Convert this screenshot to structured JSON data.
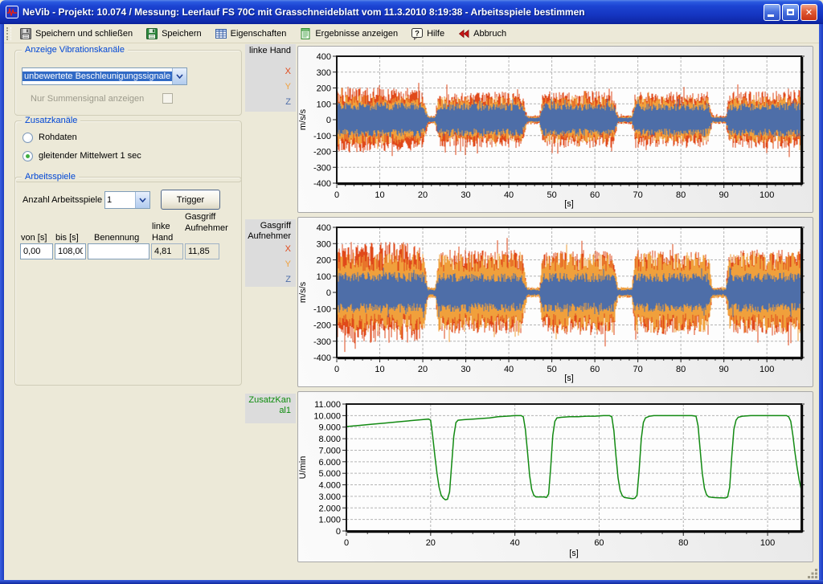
{
  "window": {
    "title": "NeVib  - Projekt: 10.074 / Messung: Leerlauf FS 70C mit Grasschneideblatt vom 11.3.2010 8:19:38 - Arbeitsspiele bestimmen"
  },
  "toolbar": {
    "items": [
      {
        "label": "Speichern und schließen",
        "icon": "save-close-icon"
      },
      {
        "label": "Speichern",
        "icon": "save-icon"
      },
      {
        "label": "Eigenschaften",
        "icon": "properties-icon"
      },
      {
        "label": "Ergebnisse anzeigen",
        "icon": "results-icon"
      },
      {
        "label": "Hilfe",
        "icon": "help-icon"
      },
      {
        "label": "Abbruch",
        "icon": "abort-icon"
      }
    ]
  },
  "sidebar": {
    "anzeige": {
      "title": "Anzeige Vibrationskanäle",
      "combo_value": "unbewertete Beschleunigungssignale",
      "summensignal_label": "Nur Summensignal anzeigen"
    },
    "zusatz": {
      "title": "Zusatzkanäle",
      "options": [
        {
          "label": "Rohdaten",
          "selected": false
        },
        {
          "label": "gleitender Mittelwert 1 sec",
          "selected": true
        }
      ]
    },
    "arbeitsspiele": {
      "title": "Arbeitsspiele",
      "anzahl_label": "Anzahl Arbeitsspiele",
      "anzahl_value": "1",
      "trigger_label": "Trigger",
      "table": {
        "headers": {
          "von": "von [s]",
          "bis": "bis [s]",
          "benennung": "Benennung",
          "linke1": "linke",
          "linke2": "Hand",
          "gasgriff1": "Gasgriff",
          "gasgriff2": "Aufnehmer"
        },
        "row": {
          "von": "0,00",
          "bis": "108,00",
          "benennung": "",
          "linke_hand": "4,81",
          "gasgriff": "11,85"
        }
      }
    }
  },
  "chart_data": [
    {
      "type": "noise-envelope",
      "seed": 11,
      "title": "linke Hand",
      "channel_labels": [
        {
          "label": "X",
          "color": "#e0491a"
        },
        {
          "label": "Y",
          "color": "#f0a03c"
        },
        {
          "label": "Z",
          "color": "#4e6ea8"
        }
      ],
      "ylabel": "m/s/s",
      "xlabel": "[s]",
      "xlim": [
        0,
        108
      ],
      "ylim": [
        -400,
        400
      ],
      "yticks": [
        400,
        300,
        200,
        100,
        0,
        -100,
        -200,
        -300,
        -400
      ],
      "xticks": [
        0,
        10,
        20,
        30,
        40,
        50,
        60,
        70,
        80,
        90,
        100
      ],
      "xminor": 2,
      "series": [
        {
          "name": "X",
          "color": "#e0491a",
          "envelope": [
            [
              0,
              185
            ],
            [
              1.5,
              200
            ],
            [
              19.5,
              190
            ],
            [
              20.5,
              120
            ],
            [
              21.3,
              28
            ],
            [
              22.8,
              28
            ],
            [
              23.7,
              165
            ],
            [
              43,
              170
            ],
            [
              44.3,
              28
            ],
            [
              47.1,
              28
            ],
            [
              47.9,
              170
            ],
            [
              64.3,
              175
            ],
            [
              65.4,
              28
            ],
            [
              68.6,
              28
            ],
            [
              69.4,
              170
            ],
            [
              86.2,
              170
            ],
            [
              87.3,
              28
            ],
            [
              90.4,
              28
            ],
            [
              91.3,
              170
            ],
            [
              108,
              180
            ]
          ]
        },
        {
          "name": "Y",
          "color": "#f0a03c",
          "envelope": [
            [
              0,
              150
            ],
            [
              19.5,
              150
            ],
            [
              20.5,
              100
            ],
            [
              21.3,
              22
            ],
            [
              22.8,
              22
            ],
            [
              23.7,
              135
            ],
            [
              43,
              140
            ],
            [
              44.3,
              22
            ],
            [
              47.1,
              22
            ],
            [
              47.9,
              140
            ],
            [
              64.3,
              140
            ],
            [
              65.4,
              22
            ],
            [
              68.6,
              22
            ],
            [
              69.4,
              140
            ],
            [
              86.2,
              140
            ],
            [
              87.3,
              22
            ],
            [
              90.4,
              22
            ],
            [
              91.3,
              140
            ],
            [
              108,
              145
            ]
          ]
        },
        {
          "name": "Z",
          "color": "#4e6ea8",
          "envelope": [
            [
              0,
              108
            ],
            [
              19.5,
              105
            ],
            [
              20.5,
              70
            ],
            [
              21.3,
              16
            ],
            [
              22.8,
              16
            ],
            [
              23.7,
              100
            ],
            [
              43,
              100
            ],
            [
              44.3,
              15
            ],
            [
              47.1,
              15
            ],
            [
              47.9,
              100
            ],
            [
              64.3,
              100
            ],
            [
              65.4,
              16
            ],
            [
              68.6,
              16
            ],
            [
              69.4,
              100
            ],
            [
              86.2,
              100
            ],
            [
              87.3,
              16
            ],
            [
              90.4,
              16
            ],
            [
              91.3,
              100
            ],
            [
              108,
              105
            ]
          ]
        }
      ]
    },
    {
      "type": "noise-envelope",
      "seed": 22,
      "title": "Gasgriff Aufnehmer",
      "channel_labels": [
        {
          "label": "X",
          "color": "#e0491a"
        },
        {
          "label": "Y",
          "color": "#f0a03c"
        },
        {
          "label": "Z",
          "color": "#4e6ea8"
        }
      ],
      "ylabel": "m/s/s",
      "xlabel": "[s]",
      "xlim": [
        0,
        108
      ],
      "ylim": [
        -400,
        400
      ],
      "yticks": [
        400,
        300,
        200,
        100,
        0,
        -100,
        -200,
        -300,
        -400
      ],
      "xticks": [
        0,
        10,
        20,
        30,
        40,
        50,
        60,
        70,
        80,
        90,
        100
      ],
      "xminor": 2,
      "series": [
        {
          "name": "X",
          "color": "#e0491a",
          "envelope": [
            [
              0,
              300
            ],
            [
              19,
              295
            ],
            [
              20.3,
              200
            ],
            [
              21.2,
              30
            ],
            [
              22.9,
              30
            ],
            [
              23.7,
              250
            ],
            [
              43,
              250
            ],
            [
              44.3,
              28
            ],
            [
              47.1,
              28
            ],
            [
              47.9,
              250
            ],
            [
              64.3,
              250
            ],
            [
              65.4,
              30
            ],
            [
              68.6,
              30
            ],
            [
              69.4,
              250
            ],
            [
              86.2,
              250
            ],
            [
              87.3,
              30
            ],
            [
              90.4,
              30
            ],
            [
              91.3,
              250
            ],
            [
              108,
              255
            ]
          ]
        },
        {
          "name": "Y",
          "color": "#f0a03c",
          "envelope": [
            [
              0,
              235
            ],
            [
              20.3,
              230
            ],
            [
              21.2,
              35
            ],
            [
              22.9,
              35
            ],
            [
              23.7,
              230
            ],
            [
              43,
              235
            ],
            [
              44.3,
              33
            ],
            [
              47.1,
              33
            ],
            [
              47.9,
              235
            ],
            [
              64.3,
              235
            ],
            [
              65.4,
              35
            ],
            [
              68.6,
              35
            ],
            [
              69.4,
              235
            ],
            [
              86.2,
              235
            ],
            [
              87.3,
              35
            ],
            [
              90.4,
              35
            ],
            [
              91.3,
              235
            ],
            [
              108,
              240
            ]
          ]
        },
        {
          "name": "Z",
          "color": "#4e6ea8",
          "envelope": [
            [
              0,
              120
            ],
            [
              20.3,
              118
            ],
            [
              21.2,
              20
            ],
            [
              22.9,
              20
            ],
            [
              23.7,
              115
            ],
            [
              43,
              115
            ],
            [
              44.3,
              18
            ],
            [
              47.1,
              18
            ],
            [
              47.9,
              115
            ],
            [
              64.3,
              115
            ],
            [
              65.4,
              20
            ],
            [
              68.6,
              20
            ],
            [
              69.4,
              115
            ],
            [
              86.2,
              115
            ],
            [
              87.3,
              20
            ],
            [
              90.4,
              20
            ],
            [
              91.3,
              115
            ],
            [
              108,
              118
            ]
          ]
        }
      ]
    },
    {
      "type": "line",
      "title": "ZusatzKanal1",
      "color": "#128a12",
      "ylabel": "U/min",
      "xlabel": "[s]",
      "xlim": [
        0,
        108
      ],
      "ylim": [
        0,
        11000
      ],
      "yticks": [
        {
          "v": 11000,
          "label": "11.000"
        },
        {
          "v": 10000,
          "label": "10.000"
        },
        {
          "v": 9000,
          "label": "9.000"
        },
        {
          "v": 8000,
          "label": "8.000"
        },
        {
          "v": 7000,
          "label": "7.000"
        },
        {
          "v": 6000,
          "label": "6.000"
        },
        {
          "v": 5000,
          "label": "5.000"
        },
        {
          "v": 4000,
          "label": "4.000"
        },
        {
          "v": 3000,
          "label": "3.000"
        },
        {
          "v": 2000,
          "label": "2.000"
        },
        {
          "v": 1000,
          "label": "1.000"
        },
        {
          "v": 0,
          "label": "0"
        }
      ],
      "xticks": [
        0,
        20,
        40,
        60,
        80,
        100
      ],
      "xminor": 5,
      "points": [
        [
          0,
          9050
        ],
        [
          3,
          9150
        ],
        [
          6,
          9250
        ],
        [
          9,
          9350
        ],
        [
          12,
          9450
        ],
        [
          15,
          9550
        ],
        [
          18,
          9650
        ],
        [
          19.5,
          9700
        ],
        [
          20,
          9600
        ],
        [
          20.5,
          8200
        ],
        [
          21,
          6500
        ],
        [
          21.5,
          5000
        ],
        [
          22,
          3800
        ],
        [
          22.5,
          3100
        ],
        [
          23,
          2850
        ],
        [
          23.5,
          2700
        ],
        [
          24,
          2750
        ],
        [
          24.5,
          3400
        ],
        [
          25,
          5800
        ],
        [
          25.5,
          8200
        ],
        [
          26,
          9400
        ],
        [
          26.5,
          9600
        ],
        [
          28,
          9650
        ],
        [
          30,
          9700
        ],
        [
          32,
          9750
        ],
        [
          34,
          9800
        ],
        [
          36,
          9900
        ],
        [
          38,
          9950
        ],
        [
          40,
          10000
        ],
        [
          41.5,
          10000
        ],
        [
          42,
          9900
        ],
        [
          42.5,
          8800
        ],
        [
          43,
          6800
        ],
        [
          43.5,
          4800
        ],
        [
          44,
          3600
        ],
        [
          44.5,
          3100
        ],
        [
          45,
          2950
        ],
        [
          46,
          2950
        ],
        [
          47,
          2950
        ],
        [
          47.5,
          2900
        ],
        [
          48,
          3200
        ],
        [
          48.5,
          5500
        ],
        [
          49,
          8300
        ],
        [
          49.5,
          9500
        ],
        [
          50,
          9800
        ],
        [
          51,
          9850
        ],
        [
          53,
          9900
        ],
        [
          55,
          9900
        ],
        [
          57,
          9950
        ],
        [
          59,
          9950
        ],
        [
          61,
          10000
        ],
        [
          62.5,
          10000
        ],
        [
          63,
          9900
        ],
        [
          63.5,
          8700
        ],
        [
          64,
          6500
        ],
        [
          64.5,
          4600
        ],
        [
          65,
          3500
        ],
        [
          65.5,
          3050
        ],
        [
          66,
          2900
        ],
        [
          67,
          2850
        ],
        [
          68,
          2800
        ],
        [
          68.5,
          2850
        ],
        [
          69,
          3100
        ],
        [
          69.5,
          5200
        ],
        [
          70,
          8000
        ],
        [
          70.5,
          9400
        ],
        [
          71,
          9800
        ],
        [
          72,
          9950
        ],
        [
          73,
          10000
        ],
        [
          76,
          10000
        ],
        [
          79,
          10000
        ],
        [
          82,
          10000
        ],
        [
          83,
          9950
        ],
        [
          83.5,
          9100
        ],
        [
          84,
          7000
        ],
        [
          84.5,
          5000
        ],
        [
          85,
          3700
        ],
        [
          85.5,
          3150
        ],
        [
          86,
          2950
        ],
        [
          87,
          2900
        ],
        [
          88,
          2880
        ],
        [
          89,
          2870
        ],
        [
          90,
          2860
        ],
        [
          90.5,
          2950
        ],
        [
          91,
          3800
        ],
        [
          91.5,
          6500
        ],
        [
          92,
          8800
        ],
        [
          92.5,
          9600
        ],
        [
          93,
          9850
        ],
        [
          94,
          9950
        ],
        [
          96,
          10000
        ],
        [
          99,
          10000
        ],
        [
          102,
          10000
        ],
        [
          104.5,
          10000
        ],
        [
          105,
          9900
        ],
        [
          105.5,
          9500
        ],
        [
          106,
          8300
        ],
        [
          106.5,
          6800
        ],
        [
          107,
          5500
        ],
        [
          107.5,
          4400
        ],
        [
          108,
          3600
        ]
      ]
    }
  ]
}
